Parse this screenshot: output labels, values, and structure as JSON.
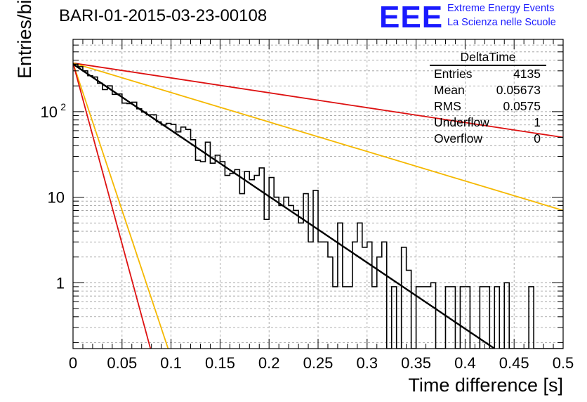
{
  "header": {
    "run_title": "BARI-01-2015-03-23-00108",
    "logo_text": "EEE",
    "org_line1": "Extreme Energy Events",
    "org_line2": "La Scienza nelle Scuole"
  },
  "stats_box": {
    "title": "DeltaTime",
    "rows": [
      {
        "label": "Entries",
        "value": "4135"
      },
      {
        "label": "Mean",
        "value": "0.05673"
      },
      {
        "label": "RMS",
        "value": "0.0575"
      },
      {
        "label": "Underflow",
        "value": "1"
      },
      {
        "label": "Overflow",
        "value": "0"
      }
    ]
  },
  "colors": {
    "histogram": "#000000",
    "fit_line": "#000000",
    "red_lines": "#dd1111",
    "yellow_lines": "#f5b800",
    "grid": "#999999",
    "logo": "#1a1aff"
  },
  "chart_data": {
    "type": "histogram",
    "xlabel": "Time difference [s]",
    "ylabel": "Entries/bin",
    "xlim": [
      0,
      0.5
    ],
    "ylim": [
      0.17,
      700
    ],
    "yscale": "log",
    "grid": true,
    "x_ticks": [
      "0",
      "0.05",
      "0.1",
      "0.15",
      "0.2",
      "0.25",
      "0.3",
      "0.35",
      "0.4",
      "0.45",
      "0.5"
    ],
    "y_ticks": [
      {
        "value": 1,
        "label": "1"
      },
      {
        "value": 10,
        "label": "10"
      },
      {
        "value": 100,
        "label": "10",
        "exponent": "2"
      }
    ],
    "bin_width": 0.005,
    "bin_counts": [
      358,
      335,
      300,
      263,
      254,
      215,
      181,
      200,
      159,
      161,
      126,
      124,
      129,
      108,
      99,
      92,
      92,
      76,
      70,
      73,
      71,
      58,
      66,
      62,
      47,
      27,
      26,
      44,
      25,
      31,
      26,
      18,
      19,
      21,
      11,
      20,
      16,
      18,
      22,
      5.5,
      17,
      10,
      8,
      10,
      8,
      7,
      5,
      11,
      3,
      12,
      3,
      3,
      2,
      0.9,
      5,
      0.9,
      0.9,
      3,
      5,
      2.6,
      3,
      0.9,
      2,
      3,
      0.09,
      0.9,
      0.09,
      2.6,
      1.4,
      0.09,
      0.9,
      0.9,
      0.9,
      1,
      0.09,
      0.09,
      0.9,
      0.9,
      0.09,
      0.9,
      0.9,
      0.09,
      0.09,
      0.9,
      0.9,
      0.09,
      0.9,
      0.09,
      1,
      0.09,
      0.09,
      0.09,
      0.09,
      0.9,
      0.09,
      0.09,
      0.09,
      0.09,
      0.09,
      0.09
    ],
    "series": [
      {
        "kind": "fit",
        "color": "#000000",
        "points": [
          [
            0,
            360
          ],
          [
            0.43,
            0.17
          ]
        ]
      },
      {
        "kind": "reference",
        "color": "#dd1111",
        "points": [
          [
            0,
            370
          ],
          [
            0.5,
            50
          ]
        ]
      },
      {
        "kind": "reference",
        "color": "#f5b800",
        "points": [
          [
            0,
            370
          ],
          [
            0.5,
            7
          ]
        ]
      },
      {
        "kind": "reference",
        "color": "#f5b800",
        "points": [
          [
            0,
            370
          ],
          [
            0.097,
            0.17
          ]
        ]
      },
      {
        "kind": "reference",
        "color": "#dd1111",
        "points": [
          [
            0,
            370
          ],
          [
            0.079,
            0.17
          ]
        ]
      }
    ]
  }
}
